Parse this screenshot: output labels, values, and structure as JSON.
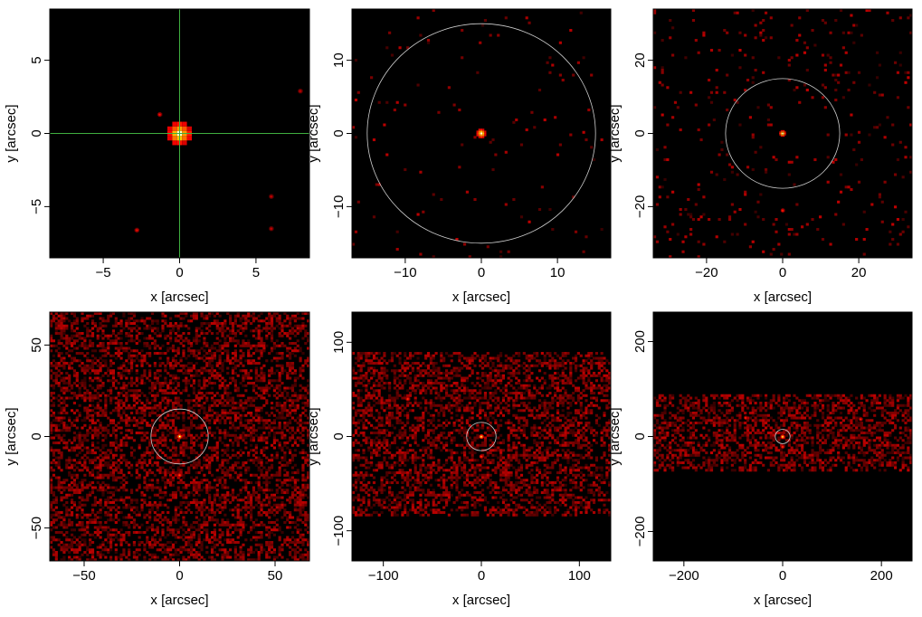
{
  "figure": {
    "background": "#ffffff",
    "image_background": "#000000",
    "overlay_circle_color": "#cfcfcf",
    "crosshair_color": "#3fae3f"
  },
  "chart_data": [
    {
      "type": "heatmap",
      "xlabel": "x [arcsec]",
      "ylabel": "y [arcsec]",
      "xlim": [
        -8.5,
        8.5
      ],
      "ylim": [
        -8.5,
        8.5
      ],
      "xticks": [
        -5,
        0,
        5
      ],
      "yticks": [
        -5,
        0,
        5
      ],
      "tick_labels": {
        "x": [
          "−5",
          "0",
          "5"
        ],
        "y": [
          "−5",
          "0",
          "5"
        ]
      },
      "overlay": {
        "kind": "crosshair",
        "x": 0,
        "y": 0
      },
      "band": null,
      "noise_level": 0.0,
      "sources": [
        {
          "x": 0,
          "y": 0,
          "size": 1.6,
          "level": 1.0
        },
        {
          "x": -1.3,
          "y": 1.3,
          "size": 0.3,
          "level": 0.5
        },
        {
          "x": -2.8,
          "y": -6.6,
          "size": 0.3,
          "level": 0.5
        },
        {
          "x": 6.0,
          "y": -4.3,
          "size": 0.3,
          "level": 0.4
        },
        {
          "x": 6.0,
          "y": -6.5,
          "size": 0.3,
          "level": 0.4
        },
        {
          "x": 7.9,
          "y": 2.9,
          "size": 0.3,
          "level": 0.4
        }
      ]
    },
    {
      "type": "heatmap",
      "xlabel": "x [arcsec]",
      "ylabel": "y [arcsec]",
      "xlim": [
        -17,
        17
      ],
      "ylim": [
        -17,
        17
      ],
      "xticks": [
        -10,
        0,
        10
      ],
      "yticks": [
        -10,
        0,
        10
      ],
      "tick_labels": {
        "x": [
          "−10",
          "0",
          "10"
        ],
        "y": [
          "−10",
          "0",
          "10"
        ]
      },
      "overlay": {
        "kind": "circle",
        "x": 0,
        "y": 0,
        "r": 15
      },
      "band": null,
      "noise_level": 0.02,
      "sources": [
        {
          "x": 0,
          "y": 0,
          "size": 1.3,
          "level": 1.0
        }
      ]
    },
    {
      "type": "heatmap",
      "xlabel": "x [arcsec]",
      "ylabel": "y [arcsec]",
      "xlim": [
        -34,
        34
      ],
      "ylim": [
        -34,
        34
      ],
      "xticks": [
        -20,
        0,
        20
      ],
      "yticks": [
        -20,
        0,
        20
      ],
      "tick_labels": {
        "x": [
          "−20",
          "0",
          "20"
        ],
        "y": [
          "−20",
          "0",
          "20"
        ]
      },
      "overlay": {
        "kind": "circle",
        "x": 0,
        "y": 0,
        "r": 15
      },
      "band": null,
      "noise_level": 0.06,
      "sources": [
        {
          "x": 0,
          "y": 0,
          "size": 1.8,
          "level": 1.0
        },
        {
          "x": 0,
          "y": -21,
          "size": 1.0,
          "level": 0.6
        }
      ]
    },
    {
      "type": "heatmap",
      "xlabel": "x [arcsec]",
      "ylabel": "y [arcsec]",
      "xlim": [
        -68,
        68
      ],
      "ylim": [
        -68,
        68
      ],
      "xticks": [
        -50,
        0,
        50
      ],
      "yticks": [
        -50,
        0,
        50
      ],
      "tick_labels": {
        "x": [
          "−50",
          "0",
          "50"
        ],
        "y": [
          "−50",
          "0",
          "50"
        ]
      },
      "overlay": {
        "kind": "circle",
        "x": 0,
        "y": 0,
        "r": 15
      },
      "band": null,
      "noise_level": 0.32,
      "sources": [
        {
          "x": 0,
          "y": 0,
          "size": 2.8,
          "level": 1.0
        },
        {
          "x": 0,
          "y": -21,
          "size": 2.4,
          "level": 0.65
        }
      ]
    },
    {
      "type": "heatmap",
      "xlabel": "x [arcsec]",
      "ylabel": "y [arcsec]",
      "xlim": [
        -132,
        132
      ],
      "ylim": [
        -132,
        132
      ],
      "xticks": [
        -100,
        0,
        100
      ],
      "yticks": [
        -100,
        0,
        100
      ],
      "tick_labels": {
        "x": [
          "−100",
          "0",
          "100"
        ],
        "y": [
          "−100",
          "0",
          "100"
        ]
      },
      "overlay": {
        "kind": "circle",
        "x": 0,
        "y": 0,
        "r": 15
      },
      "band": [
        -85,
        90
      ],
      "noise_level": 0.32,
      "sources": [
        {
          "x": 0,
          "y": 0,
          "size": 4.5,
          "level": 1.0
        },
        {
          "x": 0,
          "y": -21,
          "size": 4.0,
          "level": 0.65
        },
        {
          "x": -75,
          "y": 40,
          "size": 4.5,
          "level": 0.6
        }
      ]
    },
    {
      "type": "heatmap",
      "xlabel": "x [arcsec]",
      "ylabel": "y [arcsec]",
      "xlim": [
        -262,
        262
      ],
      "ylim": [
        -262,
        262
      ],
      "xticks": [
        -200,
        0,
        200
      ],
      "yticks": [
        -200,
        0,
        200
      ],
      "tick_labels": {
        "x": [
          "−200",
          "0",
          "200"
        ],
        "y": [
          "−200",
          "0",
          "200"
        ]
      },
      "overlay": {
        "kind": "circle",
        "x": 0,
        "y": 0,
        "r": 15
      },
      "band": [
        -75,
        88
      ],
      "noise_level": 0.32,
      "sources": [
        {
          "x": 0,
          "y": 0,
          "size": 8,
          "level": 1.0
        },
        {
          "x": 0,
          "y": -21,
          "size": 7,
          "level": 0.65
        },
        {
          "x": -75,
          "y": 40,
          "size": 7,
          "level": 0.6
        },
        {
          "x": 158,
          "y": 37,
          "size": 7,
          "level": 0.6
        }
      ]
    }
  ]
}
